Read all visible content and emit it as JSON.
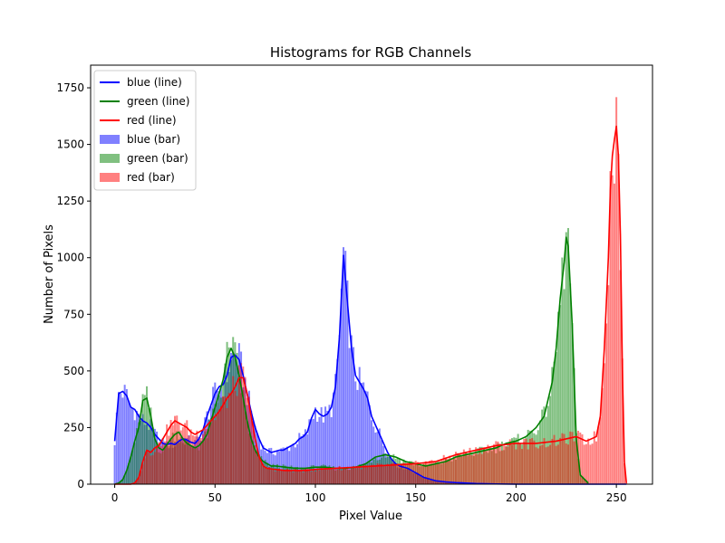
{
  "chart_data": {
    "type": "bar",
    "title": "Histograms for RGB Channels",
    "xlabel": "Pixel Value",
    "ylabel": "Number of Pixels",
    "xlim": [
      -12,
      268
    ],
    "ylim": [
      0,
      1850
    ],
    "xticks": [
      0,
      50,
      100,
      150,
      200,
      250
    ],
    "yticks": [
      0,
      250,
      500,
      750,
      1000,
      1250,
      1500,
      1750
    ],
    "legend_position": "upper-left",
    "legend": [
      {
        "label": "blue (line)",
        "kind": "line",
        "color": "#0000ff"
      },
      {
        "label": "green (line)",
        "kind": "line",
        "color": "#008000"
      },
      {
        "label": "red (line)",
        "kind": "line",
        "color": "#ff0000"
      },
      {
        "label": "blue (bar)",
        "kind": "bar",
        "color": "#8080ff"
      },
      {
        "label": "green (bar)",
        "kind": "bar",
        "color": "#80c080"
      },
      {
        "label": "red (bar)",
        "kind": "bar",
        "color": "#ff8080"
      }
    ],
    "series": [
      {
        "name": "blue",
        "line_color": "#0000ff",
        "bar_color": "#0000ff",
        "bar_opacity": 0.5,
        "x": [
          0,
          2,
          4,
          6,
          8,
          10,
          12,
          14,
          16,
          18,
          20,
          22,
          24,
          26,
          28,
          30,
          32,
          34,
          36,
          38,
          40,
          42,
          44,
          46,
          48,
          50,
          52,
          54,
          56,
          58,
          60,
          62,
          64,
          66,
          68,
          70,
          72,
          74,
          76,
          78,
          80,
          82,
          84,
          86,
          88,
          90,
          92,
          94,
          96,
          98,
          100,
          102,
          104,
          106,
          108,
          110,
          112,
          114,
          116,
          118,
          120,
          122,
          124,
          126,
          128,
          130,
          132,
          134,
          136,
          138,
          140,
          142,
          144,
          146,
          148,
          150,
          152,
          154,
          156,
          158,
          160,
          165,
          170,
          175,
          180,
          190,
          200,
          210,
          220,
          230,
          240,
          255
        ],
        "y": [
          190,
          400,
          410,
          390,
          340,
          330,
          300,
          280,
          270,
          250,
          220,
          200,
          180,
          175,
          180,
          175,
          190,
          200,
          195,
          185,
          180,
          200,
          240,
          300,
          350,
          400,
          430,
          440,
          480,
          560,
          570,
          550,
          480,
          400,
          320,
          250,
          200,
          160,
          150,
          140,
          145,
          150,
          150,
          160,
          170,
          180,
          200,
          210,
          230,
          290,
          330,
          310,
          300,
          310,
          340,
          430,
          650,
          1010,
          800,
          600,
          480,
          450,
          420,
          380,
          300,
          260,
          220,
          180,
          140,
          110,
          90,
          80,
          75,
          70,
          60,
          50,
          40,
          30,
          25,
          20,
          15,
          10,
          7,
          5,
          3,
          1,
          0,
          0,
          0,
          0,
          0,
          0
        ]
      },
      {
        "name": "green",
        "line_color": "#008000",
        "bar_color": "#008000",
        "bar_opacity": 0.5,
        "x": [
          0,
          2,
          4,
          6,
          8,
          10,
          12,
          14,
          16,
          18,
          20,
          22,
          24,
          26,
          28,
          30,
          32,
          34,
          36,
          38,
          40,
          42,
          44,
          46,
          48,
          50,
          52,
          54,
          56,
          58,
          60,
          62,
          64,
          66,
          68,
          70,
          72,
          74,
          76,
          78,
          80,
          85,
          90,
          95,
          100,
          105,
          110,
          115,
          120,
          125,
          130,
          135,
          140,
          145,
          150,
          155,
          160,
          165,
          170,
          175,
          180,
          185,
          190,
          195,
          200,
          205,
          210,
          214,
          218,
          220,
          222,
          224,
          225,
          226,
          228,
          230,
          232,
          236
        ],
        "y": [
          0,
          5,
          20,
          60,
          120,
          190,
          250,
          370,
          380,
          300,
          200,
          160,
          150,
          175,
          200,
          220,
          230,
          200,
          180,
          170,
          160,
          170,
          190,
          220,
          280,
          340,
          400,
          460,
          560,
          600,
          560,
          480,
          380,
          280,
          200,
          150,
          120,
          100,
          90,
          80,
          80,
          75,
          70,
          70,
          75,
          75,
          70,
          70,
          75,
          90,
          120,
          130,
          120,
          100,
          90,
          80,
          90,
          100,
          120,
          130,
          140,
          150,
          160,
          180,
          190,
          210,
          250,
          300,
          450,
          600,
          820,
          980,
          1090,
          1050,
          700,
          200,
          40,
          5
        ]
      },
      {
        "name": "red",
        "line_color": "#ff0000",
        "bar_color": "#ff0000",
        "bar_opacity": 0.5,
        "x": [
          0,
          2,
          4,
          6,
          8,
          10,
          12,
          14,
          16,
          18,
          20,
          22,
          24,
          26,
          28,
          30,
          32,
          34,
          36,
          38,
          40,
          42,
          44,
          46,
          48,
          50,
          52,
          54,
          56,
          58,
          60,
          62,
          64,
          66,
          68,
          70,
          72,
          74,
          76,
          80,
          85,
          90,
          95,
          100,
          110,
          120,
          130,
          140,
          150,
          160,
          170,
          180,
          190,
          200,
          210,
          220,
          230,
          235,
          240,
          242,
          244,
          246,
          247,
          248,
          249,
          250,
          251,
          252,
          253,
          254,
          255
        ],
        "y": [
          0,
          0,
          0,
          0,
          0,
          5,
          30,
          100,
          150,
          140,
          160,
          170,
          200,
          230,
          260,
          280,
          270,
          260,
          250,
          230,
          220,
          230,
          240,
          260,
          280,
          300,
          320,
          350,
          380,
          400,
          430,
          470,
          470,
          400,
          300,
          200,
          120,
          80,
          70,
          65,
          60,
          60,
          60,
          65,
          70,
          75,
          80,
          85,
          90,
          100,
          130,
          150,
          170,
          180,
          180,
          190,
          210,
          190,
          210,
          300,
          600,
          1000,
          1300,
          1450,
          1520,
          1580,
          1450,
          1100,
          500,
          100,
          5
        ]
      }
    ]
  }
}
